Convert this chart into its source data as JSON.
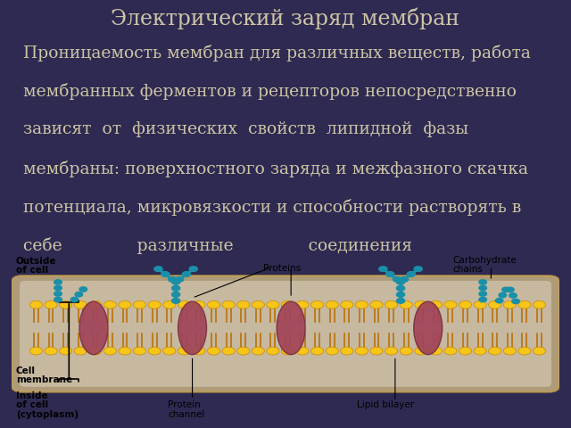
{
  "title": "Электрический заряд мембран",
  "body_lines": [
    "Проницаемость мембран для различных веществ, работа",
    "мембранных ферментов и рецепторов непосредственно",
    "зависят  от  физических  свойств  липидной  фазы",
    "мембраны: поверхностного заряда и межфазного скачка",
    "потенциала, микровязкости и способности растворять в",
    "себе              различные              соединения"
  ],
  "bg_color": "#2e2a52",
  "title_color": "#cfc5a5",
  "body_color": "#cfc5a5",
  "title_fontsize": 17,
  "body_fontsize": 13.5,
  "fig_width": 6.4,
  "fig_height": 4.8
}
